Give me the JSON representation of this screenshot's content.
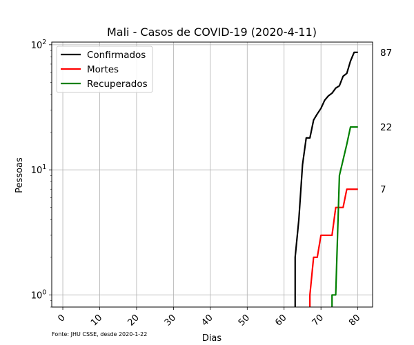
{
  "chart_data": {
    "type": "line",
    "title": "Mali - Casos de COVID-19 (2020-4-11)",
    "xlabel": "Dias",
    "ylabel": "Pessoas",
    "source": "Fonte: JHU CSSE, desde 2020-1-22",
    "xlim": [
      -3,
      84
    ],
    "ylim": [
      0.8,
      105
    ],
    "yscale": "log",
    "grid": true,
    "legend_position": "top-left",
    "x_ticks": [
      0,
      10,
      20,
      30,
      40,
      50,
      60,
      70,
      80
    ],
    "x_tick_labels": [
      "0",
      "10",
      "20",
      "30",
      "40",
      "50",
      "60",
      "70",
      "80"
    ],
    "y_ticks": [
      {
        "value": 1,
        "base": "10",
        "exp": "0"
      },
      {
        "value": 10,
        "base": "10",
        "exp": "1"
      },
      {
        "value": 100,
        "base": "10",
        "exp": "2"
      }
    ],
    "end_labels": [
      {
        "text": "87",
        "value": 87
      },
      {
        "text": "22",
        "value": 22
      },
      {
        "text": "7",
        "value": 7
      }
    ],
    "series": [
      {
        "name": "Confirmados",
        "color": "#000000",
        "x": [
          63,
          64,
          65,
          66,
          67,
          68,
          69,
          70,
          71,
          72,
          73,
          74,
          75,
          76,
          77,
          78,
          79,
          80
        ],
        "y": [
          2,
          4,
          11,
          18,
          18,
          25,
          28,
          31,
          36,
          39,
          41,
          45,
          47,
          56,
          59,
          74,
          87,
          87
        ]
      },
      {
        "name": "Mortes",
        "color": "#ff0000",
        "x": [
          67,
          68,
          69,
          70,
          71,
          72,
          73,
          74,
          75,
          76,
          77,
          78,
          79,
          80
        ],
        "y": [
          1,
          2,
          2,
          3,
          3,
          3,
          3,
          5,
          5,
          5,
          7,
          7,
          7,
          7
        ]
      },
      {
        "name": "Recuperados",
        "color": "#008000",
        "x": [
          73,
          74,
          75,
          76,
          77,
          78,
          79,
          80
        ],
        "y": [
          1,
          1,
          9,
          12,
          16,
          22,
          22,
          22
        ]
      }
    ]
  }
}
